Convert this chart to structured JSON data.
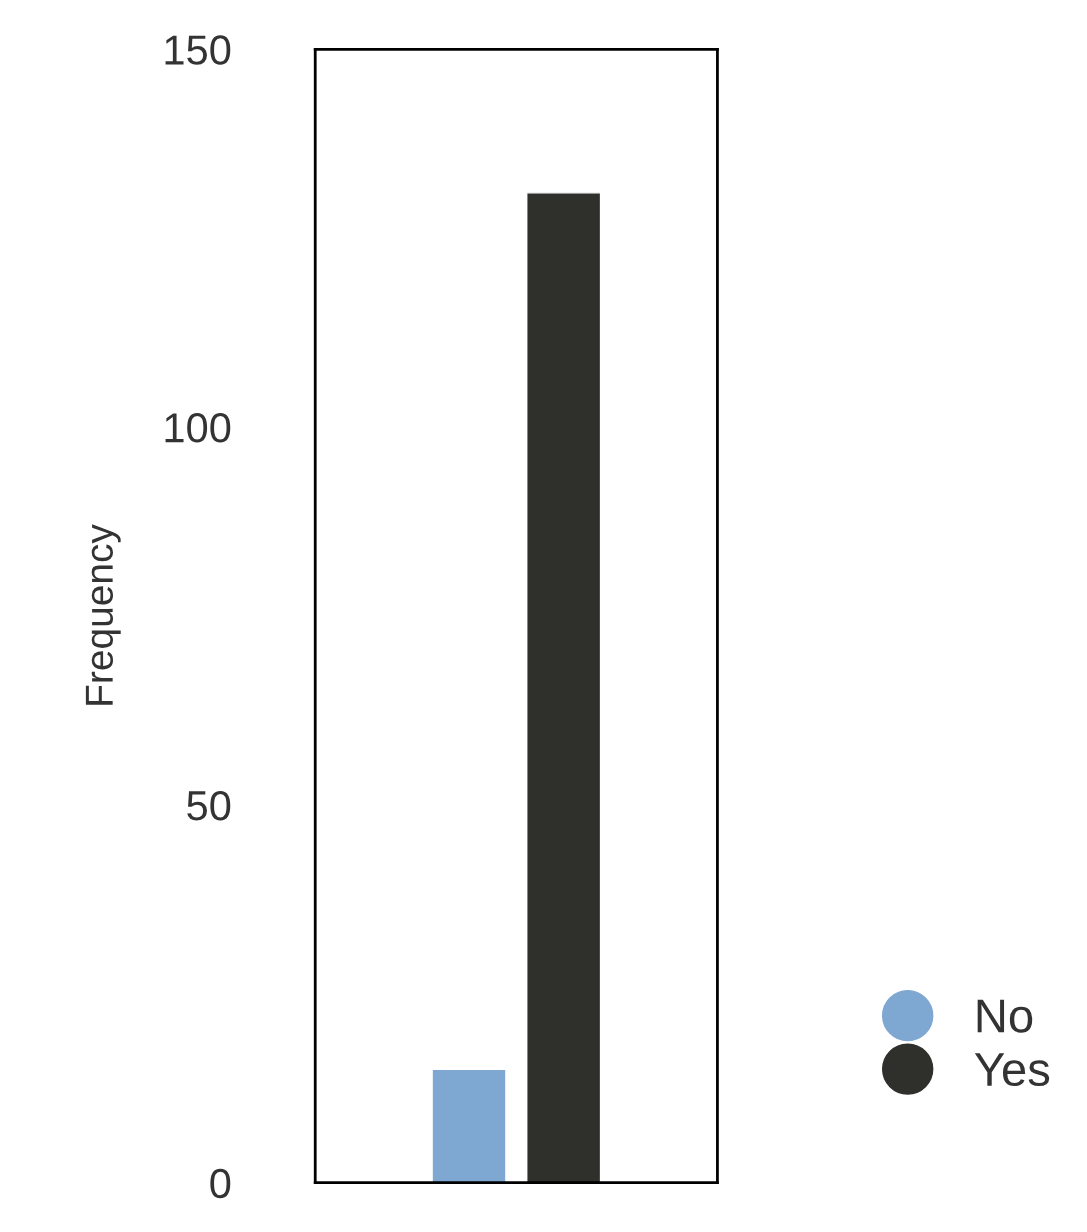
{
  "chart_data": {
    "type": "bar",
    "ylabel": "Frequency",
    "categories": [
      null
    ],
    "series": [
      {
        "name": "No",
        "color": "#7ea7d2",
        "values": [
          15
        ]
      },
      {
        "name": "Yes",
        "color": "#2f302b",
        "values": [
          131
        ]
      }
    ],
    "ylim": [
      0,
      150
    ],
    "yticks": [
      0,
      50,
      100,
      150
    ],
    "grid": false,
    "legend": "right",
    "marker": "circle"
  }
}
